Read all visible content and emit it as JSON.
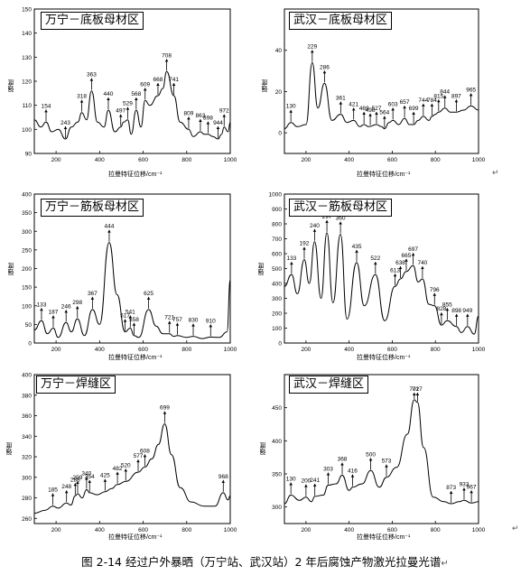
{
  "return_mark": "↵",
  "caption": "图 2-14  经过户外暴晒（万宁站、武汉站）2 年后腐蚀产物激光拉曼光谱",
  "chart_data": [
    {
      "type": "line",
      "title": "万宁－底板母材区",
      "xlabel": "拉曼特征位移/cm⁻¹",
      "ylabel": "强度",
      "xlim": [
        100,
        1000
      ],
      "ylim": [
        90,
        150
      ],
      "xticks": [
        200,
        400,
        600,
        800,
        1000
      ],
      "yticks": [
        90,
        100,
        110,
        120,
        130,
        140,
        150
      ],
      "grid": false,
      "x": [
        100,
        130,
        154,
        180,
        210,
        243,
        270,
        300,
        318,
        340,
        363,
        390,
        420,
        440,
        470,
        497,
        510,
        529,
        545,
        568,
        590,
        609,
        630,
        668,
        690,
        708,
        741,
        770,
        809,
        830,
        863,
        880,
        898,
        920,
        944,
        960,
        972,
        990,
        1000
      ],
      "y": [
        104,
        101,
        103,
        99,
        100,
        96,
        101,
        103,
        107,
        104,
        116,
        103,
        101,
        108,
        99,
        101,
        103,
        104,
        98,
        108,
        101,
        112,
        110,
        114,
        117,
        124,
        114,
        103,
        100,
        97,
        99,
        98,
        98,
        97,
        96,
        98,
        101,
        99,
        103
      ],
      "peaks": [
        154,
        243,
        318,
        363,
        440,
        497,
        529,
        568,
        609,
        668,
        708,
        741,
        809,
        863,
        898,
        944,
        972
      ]
    },
    {
      "type": "line",
      "title": "武汉－底板母材区",
      "xlabel": "拉曼特征位移/cm⁻¹",
      "ylabel": "强度",
      "xlim": [
        100,
        1000
      ],
      "ylim": [
        -10,
        60
      ],
      "xticks": [
        200,
        400,
        600,
        800,
        1000
      ],
      "yticks": [
        0,
        20,
        40
      ],
      "grid": false,
      "x": [
        100,
        130,
        160,
        200,
        229,
        255,
        286,
        320,
        361,
        390,
        421,
        450,
        469,
        490,
        527,
        550,
        564,
        585,
        603,
        630,
        657,
        680,
        699,
        720,
        744,
        770,
        784,
        800,
        815,
        844,
        870,
        897,
        930,
        965,
        1000
      ],
      "y": [
        2,
        5,
        3,
        4,
        34,
        12,
        24,
        6,
        9,
        5,
        6,
        3,
        4,
        3,
        4,
        3,
        2,
        5,
        6,
        4,
        7,
        4,
        4,
        6,
        8,
        6,
        8,
        9,
        10,
        12,
        10,
        10,
        11,
        13,
        11
      ],
      "peaks": [
        130,
        229,
        286,
        361,
        421,
        469,
        498,
        527,
        564,
        603,
        657,
        699,
        744,
        784,
        815,
        844,
        897,
        965
      ]
    },
    {
      "type": "line",
      "title": "万宁－筋板母材区",
      "xlabel": "拉曼特征位移/cm⁻¹",
      "ylabel": "强度",
      "xlim": [
        100,
        1000
      ],
      "ylim": [
        0,
        400
      ],
      "xticks": [
        200,
        400,
        600,
        800,
        1000
      ],
      "yticks": [
        0,
        50,
        100,
        150,
        200,
        250,
        300,
        350,
        400
      ],
      "grid": false,
      "x": [
        100,
        133,
        160,
        187,
        210,
        246,
        270,
        298,
        330,
        367,
        400,
        444,
        480,
        517,
        541,
        558,
        580,
        625,
        660,
        690,
        721,
        740,
        757,
        800,
        830,
        870,
        910,
        950,
        985,
        1000
      ],
      "y": [
        35,
        60,
        25,
        40,
        15,
        55,
        30,
        65,
        20,
        90,
        50,
        270,
        130,
        30,
        40,
        20,
        15,
        90,
        45,
        25,
        25,
        18,
        20,
        15,
        18,
        12,
        16,
        15,
        30,
        170
      ],
      "peaks": [
        133,
        187,
        246,
        298,
        367,
        444,
        517,
        541,
        558,
        625,
        721,
        757,
        830,
        910
      ]
    },
    {
      "type": "line",
      "title": "武汉－筋板母材区",
      "xlabel": "拉曼特征位移/cm⁻¹",
      "ylabel": "强度",
      "xlim": [
        100,
        1000
      ],
      "ylim": [
        0,
        1000
      ],
      "xticks": [
        200,
        400,
        600,
        800,
        1000
      ],
      "yticks": [
        0,
        100,
        200,
        300,
        400,
        500,
        600,
        700,
        800,
        900,
        1000
      ],
      "grid": false,
      "x": [
        100,
        133,
        160,
        192,
        215,
        240,
        270,
        297,
        325,
        360,
        390,
        435,
        470,
        522,
        565,
        613,
        638,
        665,
        697,
        720,
        740,
        770,
        796,
        828,
        855,
        898,
        920,
        949,
        980,
        1000
      ],
      "y": [
        380,
        460,
        330,
        560,
        400,
        680,
        300,
        740,
        270,
        730,
        160,
        540,
        250,
        460,
        150,
        380,
        430,
        480,
        520,
        410,
        430,
        260,
        250,
        120,
        150,
        110,
        70,
        110,
        60,
        180
      ],
      "peaks": [
        133,
        192,
        240,
        297,
        360,
        435,
        522,
        613,
        638,
        665,
        697,
        740,
        796,
        828,
        855,
        898,
        949
      ]
    },
    {
      "type": "line",
      "title": "万宁－焊缝区",
      "xlabel": "拉曼特征位移/cm⁻¹",
      "ylabel": "强度",
      "xlim": [
        100,
        1000
      ],
      "ylim": [
        255,
        400
      ],
      "xticks": [
        200,
        400,
        600,
        800,
        1000
      ],
      "yticks": [
        260,
        280,
        300,
        320,
        340,
        360,
        380,
        400
      ],
      "grid": false,
      "x": [
        100,
        150,
        185,
        210,
        248,
        268,
        288,
        299,
        320,
        340,
        354,
        390,
        425,
        455,
        482,
        520,
        577,
        608,
        640,
        670,
        699,
        730,
        770,
        820,
        880,
        930,
        968,
        990,
        1000
      ],
      "y": [
        265,
        268,
        272,
        270,
        275,
        273,
        282,
        284,
        280,
        288,
        285,
        283,
        286,
        289,
        293,
        296,
        305,
        310,
        318,
        332,
        352,
        322,
        290,
        276,
        272,
        272,
        285,
        278,
        282
      ],
      "peaks": [
        185,
        248,
        288,
        299,
        340,
        354,
        425,
        482,
        520,
        577,
        608,
        699,
        968
      ]
    },
    {
      "type": "line",
      "title": "武汉－焊缝区",
      "xlabel": "拉曼特征位移/cm⁻¹",
      "ylabel": "强度",
      "xlim": [
        100,
        1000
      ],
      "ylim": [
        275,
        500
      ],
      "xticks": [
        200,
        400,
        600,
        800,
        1000
      ],
      "yticks": [
        300,
        350,
        400,
        450
      ],
      "grid": false,
      "x": [
        100,
        130,
        170,
        200,
        225,
        241,
        280,
        303,
        340,
        368,
        400,
        416,
        460,
        500,
        540,
        573,
        620,
        670,
        702,
        717,
        745,
        790,
        840,
        873,
        910,
        933,
        967,
        1000
      ],
      "y": [
        305,
        318,
        310,
        315,
        308,
        316,
        318,
        333,
        335,
        348,
        325,
        330,
        335,
        355,
        330,
        345,
        360,
        410,
        462,
        458,
        390,
        315,
        308,
        305,
        308,
        310,
        306,
        308
      ],
      "peaks": [
        130,
        200,
        241,
        303,
        368,
        416,
        500,
        573,
        702,
        717,
        873,
        933,
        967
      ]
    }
  ]
}
